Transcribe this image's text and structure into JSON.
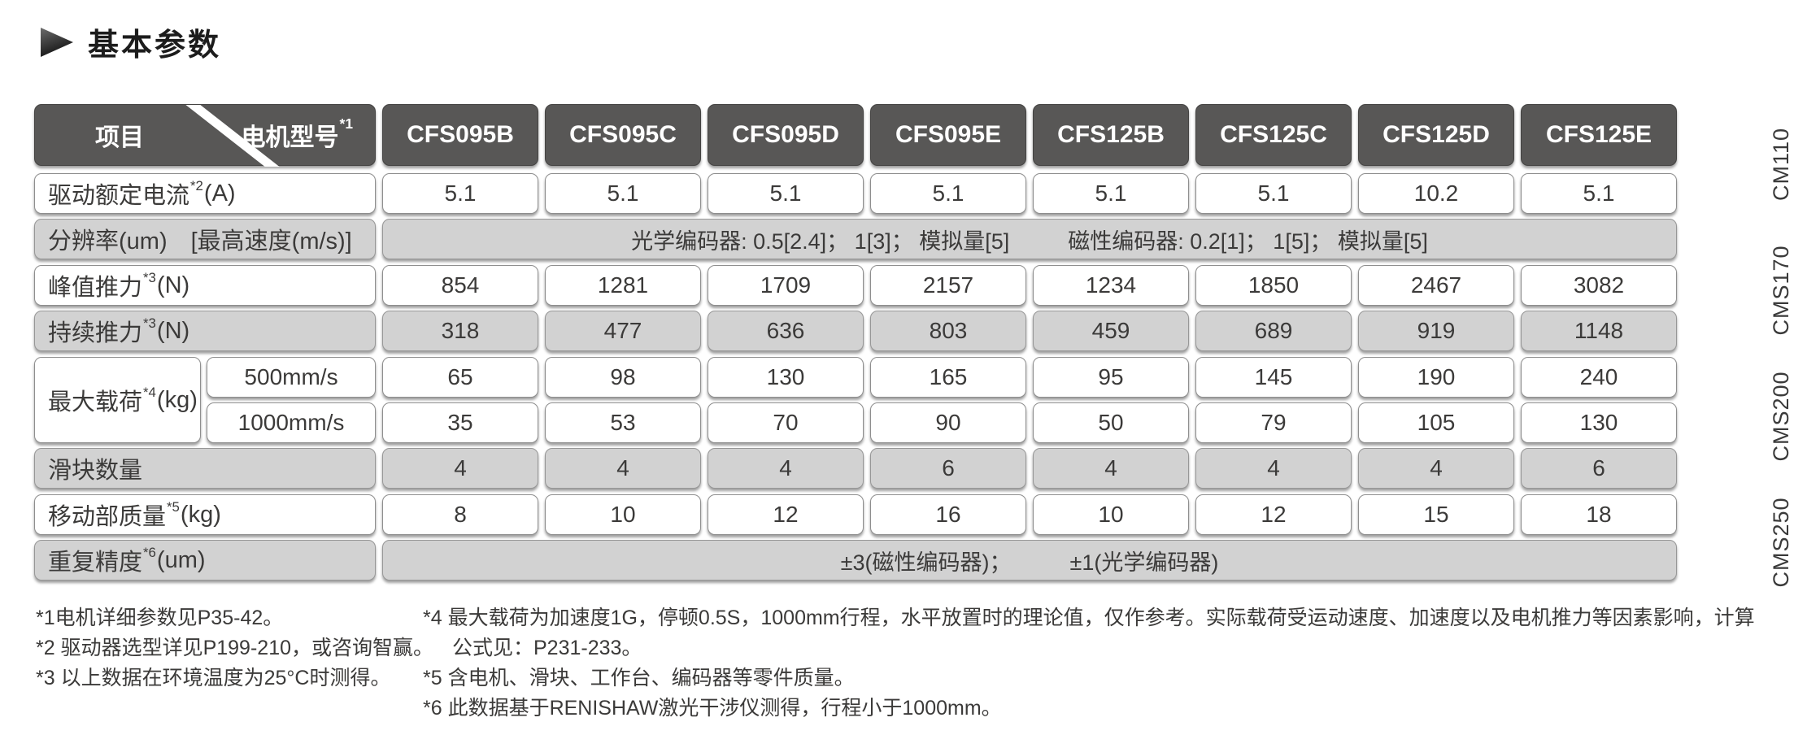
{
  "title": "基本参数",
  "colors": {
    "header_bg": "#585756",
    "row_shade": "#d2d2d2",
    "text": "#3b3a39"
  },
  "table": {
    "corner": {
      "item_label": "项目",
      "model_label": "电机型号",
      "model_sup": "*1"
    },
    "models": [
      "CFS095B",
      "CFS095C",
      "CFS095D",
      "CFS095E",
      "CFS125B",
      "CFS125C",
      "CFS125D",
      "CFS125E"
    ],
    "rows": [
      {
        "kind": "normal",
        "shade": false,
        "label": {
          "text": "驱动额定电流",
          "sup": "*2",
          "unit": "(A)"
        },
        "values": [
          "5.1",
          "5.1",
          "5.1",
          "5.1",
          "5.1",
          "5.1",
          "10.2",
          "5.1"
        ]
      },
      {
        "kind": "merged",
        "shade": true,
        "label": {
          "text": "分辨率(um)　[最高速度(m/s)]"
        },
        "merged": [
          "光学编码器: 0.5[2.4]； 1[3]； 模拟量[5]",
          "磁性编码器: 0.2[1]； 1[5]； 模拟量[5]"
        ]
      },
      {
        "kind": "normal",
        "shade": false,
        "label": {
          "text": "峰值推力",
          "sup": "*3",
          "unit": "(N)"
        },
        "values": [
          "854",
          "1281",
          "1709",
          "2157",
          "1234",
          "1850",
          "2467",
          "3082"
        ]
      },
      {
        "kind": "normal",
        "shade": true,
        "label": {
          "text": "持续推力",
          "sup": "*3",
          "unit": "(N)"
        },
        "values": [
          "318",
          "477",
          "636",
          "803",
          "459",
          "689",
          "919",
          "1148"
        ]
      },
      {
        "kind": "dual",
        "shade": false,
        "label": {
          "text": "最大载荷",
          "sup": "*4",
          "unit": "(kg)"
        },
        "subrows": [
          {
            "sublabel": "500mm/s",
            "values": [
              "65",
              "98",
              "130",
              "165",
              "95",
              "145",
              "190",
              "240"
            ]
          },
          {
            "sublabel": "1000mm/s",
            "values": [
              "35",
              "53",
              "70",
              "90",
              "50",
              "79",
              "105",
              "130"
            ]
          }
        ]
      },
      {
        "kind": "normal",
        "shade": true,
        "label": {
          "text": "滑块数量"
        },
        "values": [
          "4",
          "4",
          "4",
          "6",
          "4",
          "4",
          "4",
          "6"
        ]
      },
      {
        "kind": "normal",
        "shade": false,
        "label": {
          "text": "移动部质量",
          "sup": "*5",
          "unit": "(kg)"
        },
        "values": [
          "8",
          "10",
          "12",
          "16",
          "10",
          "12",
          "15",
          "18"
        ]
      },
      {
        "kind": "merged",
        "shade": true,
        "label": {
          "text": "重复精度",
          "sup": "*6",
          "unit": "(um)"
        },
        "merged": [
          "±3(磁性编码器)；",
          "±1(光学编码器)"
        ]
      }
    ]
  },
  "footnotes": {
    "left": [
      "*1电机详细参数见P35-42。",
      "*2 驱动器选型详见P199-210，或咨询智赢。",
      "*3 以上数据在环境温度为25°C时测得。"
    ],
    "right": [
      "*4 最大载荷为加速度1G，停顿0.5S，1000mm行程，水平放置时的理论值，仅作参考。实际载荷受运动速度、加速度以及电机推力等因素影响，计算",
      "公式见：P231-233。",
      "*5 含电机、滑块、工作台、编码器等零件质量。",
      "*6 此数据基于RENISHAW激光干涉仪测得，行程小于1000mm。"
    ]
  },
  "side_tabs": [
    "CM110",
    "CMS170",
    "CMS200",
    "CMS250"
  ]
}
